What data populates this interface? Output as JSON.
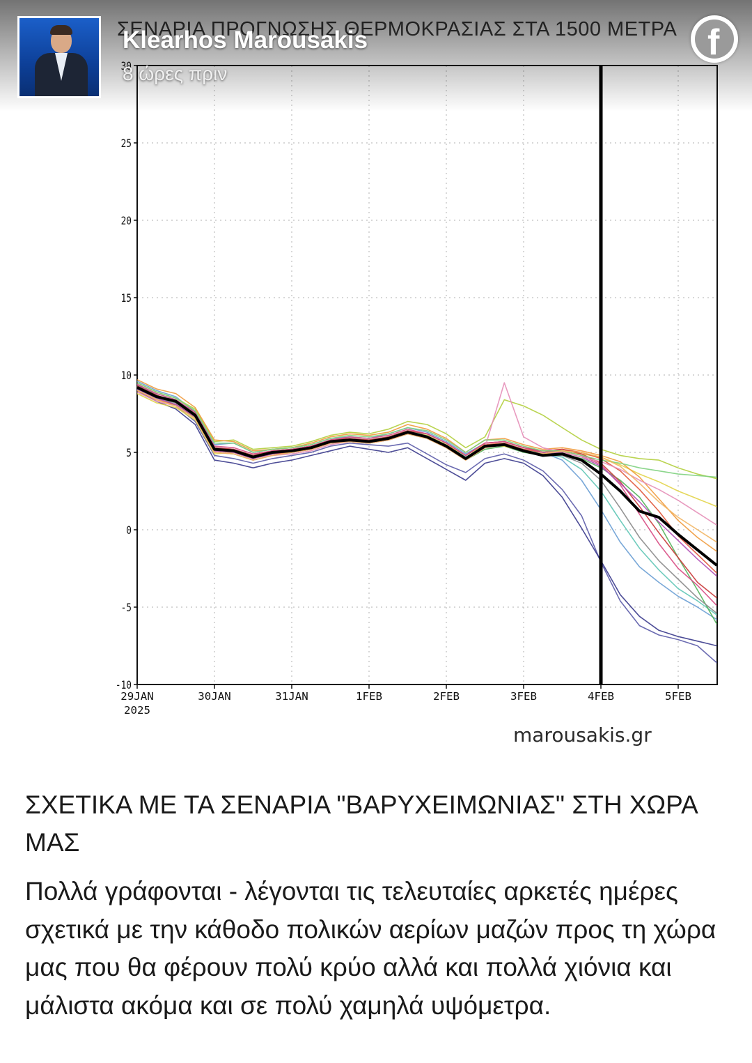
{
  "post": {
    "author": "Klearhos Marousakis",
    "time": "8 ώρες πριν",
    "title": "ΣΧΕΤΙΚΑ ΜΕ ΤΑ ΣΕΝΑΡΙΑ \"ΒΑΡΥΧΕΙΜΩΝΙΑΣ\" ΣΤΗ ΧΩΡΑ ΜΑΣ",
    "body": "Πολλά γράφονται - λέγονται τις τελευταίες αρκετές ημέρες σχετικά με την κάθοδο πολικών αερίων μαζών προς τη χώρα μας που θα φέρουν πολύ κρύο αλλά και πολλά χιόνια και μάλιστα ακόμα και σε πολύ χαμηλά υψόμετρα.",
    "platform_icon": "facebook-icon",
    "avatar_icon": "profile-photo"
  },
  "chart_data": {
    "type": "line",
    "title": "ΣΕΝΑΡΙΑ ΠΡΟΓΝΩΣΗΣ ΘΕΡΜΟΚΡΑΣΙΑΣ ΣΤΑ 1500 ΜΕΤΡΑ",
    "watermark": "marousakis.gr",
    "x_ticks": [
      "29JAN\n2025",
      "30JAN",
      "31JAN",
      "1FEB",
      "2FEB",
      "3FEB",
      "4FEB",
      "5FEB"
    ],
    "x_domain_days": [
      0,
      7.5
    ],
    "y_ticks": [
      -10,
      -5,
      0,
      5,
      10,
      15,
      20,
      25,
      30
    ],
    "ylim": [
      -10,
      30
    ],
    "grid": true,
    "marker_line_x": "4FEB",
    "x_days": [
      0,
      0.25,
      0.5,
      0.75,
      1,
      1.25,
      1.5,
      1.75,
      2,
      2.25,
      2.5,
      2.75,
      3,
      3.25,
      3.5,
      3.75,
      4,
      4.25,
      4.5,
      4.75,
      5,
      5.25,
      5.5,
      5.75,
      6,
      6.25,
      6.5,
      6.75,
      7,
      7.25,
      7.5
    ],
    "mean_series": {
      "name": "ensemble mean",
      "color": "#000000",
      "values": [
        9.2,
        8.6,
        8.3,
        7.4,
        5.2,
        5.1,
        4.7,
        5.0,
        5.1,
        5.3,
        5.7,
        5.8,
        5.7,
        5.9,
        6.3,
        6.0,
        5.4,
        4.6,
        5.4,
        5.5,
        5.1,
        4.8,
        4.9,
        4.5,
        3.6,
        2.5,
        1.2,
        0.8,
        -0.3,
        -1.3,
        -2.3
      ]
    },
    "series": [
      {
        "color": "#5b5ba8",
        "values": [
          9.4,
          8.7,
          8.0,
          7.0,
          4.8,
          4.6,
          4.3,
          4.6,
          4.8,
          5.0,
          5.4,
          5.6,
          5.5,
          5.4,
          5.6,
          4.9,
          4.2,
          3.7,
          4.6,
          4.9,
          4.5,
          3.8,
          2.6,
          0.9,
          -2.1,
          -4.6,
          -6.2,
          -6.8,
          -7.1,
          -7.5,
          -8.6
        ]
      },
      {
        "color": "#3a3a8c",
        "values": [
          9.0,
          8.3,
          7.8,
          6.8,
          4.5,
          4.3,
          4.0,
          4.3,
          4.5,
          4.8,
          5.1,
          5.4,
          5.2,
          5.0,
          5.3,
          4.6,
          3.9,
          3.2,
          4.3,
          4.6,
          4.3,
          3.5,
          2.1,
          0.1,
          -2.0,
          -4.2,
          -5.6,
          -6.5,
          -6.9,
          -7.2,
          -7.5
        ]
      },
      {
        "color": "#6a9fd4",
        "values": [
          9.6,
          9.0,
          8.6,
          7.6,
          5.5,
          5.6,
          5.0,
          5.2,
          5.3,
          5.5,
          5.9,
          6.0,
          5.9,
          6.2,
          6.6,
          6.3,
          5.7,
          4.9,
          5.6,
          5.7,
          5.3,
          5.0,
          4.5,
          3.2,
          1.3,
          -0.8,
          -2.4,
          -3.4,
          -4.3,
          -5.0,
          -5.8
        ]
      },
      {
        "color": "#5fc7b6",
        "values": [
          9.3,
          8.8,
          8.4,
          7.5,
          5.3,
          5.2,
          4.8,
          5.0,
          5.2,
          5.4,
          5.8,
          5.9,
          5.8,
          6.0,
          6.4,
          6.1,
          5.5,
          4.7,
          5.4,
          5.6,
          5.2,
          4.9,
          4.7,
          3.9,
          2.5,
          0.6,
          -1.2,
          -2.6,
          -3.8,
          -4.6,
          -5.5
        ]
      },
      {
        "color": "#52b35a",
        "values": [
          9.1,
          8.5,
          8.2,
          7.2,
          5.0,
          4.9,
          4.5,
          4.8,
          5.0,
          5.2,
          5.6,
          5.7,
          5.6,
          5.8,
          6.2,
          5.9,
          5.3,
          4.5,
          5.2,
          5.4,
          5.0,
          4.8,
          4.9,
          4.6,
          4.0,
          3.2,
          2.1,
          0.4,
          -1.8,
          -3.9,
          -6.1
        ]
      },
      {
        "color": "#b3cf3e",
        "values": [
          9.5,
          8.9,
          8.5,
          7.8,
          5.7,
          5.8,
          5.2,
          5.3,
          5.4,
          5.7,
          6.1,
          6.3,
          6.2,
          6.5,
          7.0,
          6.8,
          6.2,
          5.3,
          6.0,
          8.4,
          8.0,
          7.4,
          6.6,
          5.8,
          5.2,
          4.8,
          4.6,
          4.5,
          4.0,
          3.6,
          3.3
        ]
      },
      {
        "color": "#e2d449",
        "values": [
          8.8,
          8.2,
          7.9,
          7.1,
          4.9,
          5.0,
          4.6,
          4.9,
          5.1,
          5.3,
          5.7,
          5.8,
          5.7,
          5.9,
          6.3,
          6.1,
          5.5,
          4.8,
          5.5,
          5.4,
          5.1,
          4.9,
          5.0,
          4.9,
          4.7,
          4.2,
          3.6,
          3.1,
          2.5,
          2.0,
          1.5
        ]
      },
      {
        "color": "#f09a3c",
        "values": [
          9.7,
          9.1,
          8.8,
          7.9,
          5.8,
          5.7,
          5.1,
          5.2,
          5.3,
          5.6,
          6.0,
          6.2,
          6.1,
          6.3,
          6.8,
          6.5,
          5.9,
          5.0,
          5.8,
          5.9,
          5.5,
          5.2,
          5.3,
          5.1,
          4.8,
          4.4,
          3.4,
          2.0,
          0.6,
          -0.5,
          -1.4
        ]
      },
      {
        "color": "#e0573a",
        "values": [
          9.0,
          8.4,
          8.1,
          7.3,
          5.1,
          5.0,
          4.6,
          4.9,
          5.0,
          5.2,
          5.6,
          5.7,
          5.6,
          5.8,
          6.2,
          6.0,
          5.4,
          4.6,
          5.5,
          5.6,
          5.2,
          5.0,
          5.2,
          5.0,
          4.6,
          3.8,
          2.6,
          1.2,
          -0.4,
          -1.6,
          -2.8
        ]
      },
      {
        "color": "#c93a3a",
        "values": [
          9.3,
          8.7,
          8.3,
          7.5,
          5.3,
          5.2,
          4.8,
          5.1,
          5.2,
          5.4,
          5.8,
          5.9,
          5.8,
          6.0,
          6.4,
          6.2,
          5.6,
          4.8,
          5.6,
          5.7,
          5.3,
          5.1,
          5.2,
          4.9,
          4.3,
          3.1,
          1.5,
          -0.2,
          -1.8,
          -3.4,
          -4.4
        ]
      },
      {
        "color": "#d84c84",
        "values": [
          9.4,
          8.8,
          8.4,
          7.6,
          5.4,
          5.3,
          4.9,
          5.1,
          5.2,
          5.4,
          5.8,
          6.0,
          5.9,
          6.1,
          6.5,
          6.2,
          5.6,
          4.8,
          5.6,
          5.7,
          5.3,
          5.0,
          5.1,
          4.8,
          4.2,
          2.9,
          1.0,
          -0.9,
          -2.5,
          -3.6,
          -4.9
        ]
      },
      {
        "color": "#b04fb5",
        "values": [
          9.1,
          8.5,
          8.1,
          7.3,
          5.1,
          5.0,
          4.6,
          4.9,
          5.1,
          5.3,
          5.7,
          5.8,
          5.7,
          5.9,
          6.3,
          6.0,
          5.4,
          4.6,
          5.4,
          5.5,
          5.1,
          4.9,
          5.0,
          4.7,
          4.1,
          3.0,
          1.8,
          0.5,
          -0.7,
          -1.9,
          -3.0
        ]
      },
      {
        "color": "#8a8a8a",
        "values": [
          9.2,
          8.6,
          8.2,
          7.4,
          5.2,
          5.1,
          4.7,
          5.0,
          5.1,
          5.3,
          5.7,
          5.8,
          5.7,
          5.9,
          6.3,
          6.0,
          5.4,
          4.6,
          5.4,
          5.5,
          5.1,
          4.8,
          4.8,
          4.3,
          3.2,
          1.4,
          -0.5,
          -2.0,
          -3.2,
          -4.4,
          -5.4
        ]
      },
      {
        "color": "#e58fb8",
        "values": [
          8.9,
          8.3,
          8.0,
          7.2,
          5.0,
          4.9,
          4.5,
          4.8,
          4.9,
          5.1,
          5.5,
          5.7,
          5.6,
          5.8,
          6.2,
          5.9,
          5.3,
          4.5,
          5.3,
          9.5,
          6.0,
          5.3,
          5.0,
          4.7,
          4.4,
          3.9,
          3.2,
          2.6,
          1.9,
          1.1,
          0.3
        ]
      },
      {
        "color": "#7fd27f",
        "values": [
          9.5,
          8.9,
          8.5,
          7.7,
          5.6,
          5.6,
          5.0,
          5.2,
          5.3,
          5.5,
          5.9,
          6.1,
          6.0,
          6.2,
          6.6,
          6.4,
          5.8,
          5.0,
          5.8,
          5.8,
          5.4,
          5.1,
          5.1,
          4.8,
          4.5,
          4.3,
          4.0,
          3.8,
          3.6,
          3.5,
          3.4
        ]
      },
      {
        "color": "#f2b562",
        "values": [
          9.0,
          8.4,
          8.0,
          7.2,
          5.0,
          4.9,
          4.5,
          4.8,
          5.0,
          5.2,
          5.6,
          5.7,
          5.6,
          5.8,
          6.2,
          5.9,
          5.3,
          4.5,
          5.3,
          5.5,
          5.1,
          4.9,
          5.1,
          5.0,
          4.7,
          4.1,
          3.0,
          1.8,
          0.8,
          0.0,
          -0.8
        ]
      }
    ]
  }
}
